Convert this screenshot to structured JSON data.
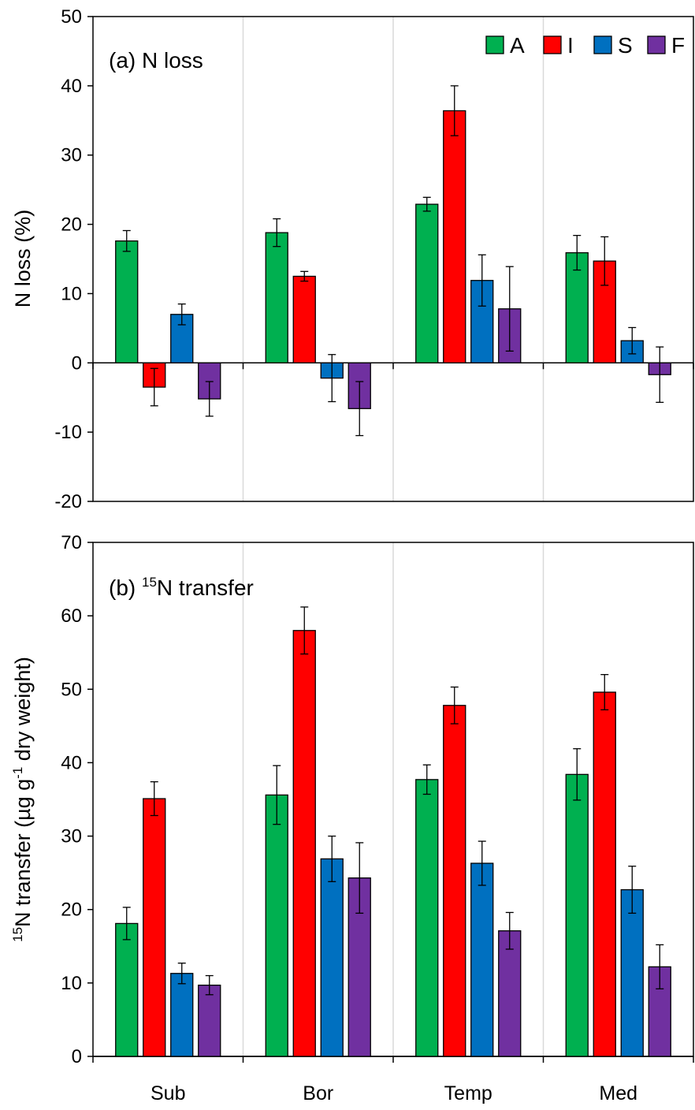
{
  "legend": [
    {
      "key": "A",
      "color": "#00b050"
    },
    {
      "key": "I",
      "color": "#ff0000"
    },
    {
      "key": "S",
      "color": "#0070c0"
    },
    {
      "key": "F",
      "color": "#7030a0"
    }
  ],
  "chart_data": [
    {
      "type": "bar",
      "title_prefix": "(a) N loss",
      "title_sup": "",
      "title_suffix": "",
      "ylabel_prefix": "N loss (%)",
      "ylabel_sup": "",
      "ylabel_mid": "",
      "ylabel_sup2": "",
      "ylabel_suffix": "",
      "ylim": [
        -20,
        50
      ],
      "yticks": [
        -20,
        -10,
        0,
        10,
        20,
        30,
        40,
        50
      ],
      "categories": [
        "Sub",
        "Bor",
        "Temp",
        "Med"
      ],
      "series": [
        {
          "name": "A",
          "values": [
            17.6,
            18.8,
            22.9,
            15.9
          ],
          "errors": [
            1.5,
            2.0,
            1.0,
            2.5
          ]
        },
        {
          "name": "I",
          "values": [
            -3.5,
            12.5,
            36.4,
            14.7
          ],
          "errors": [
            2.7,
            0.7,
            3.6,
            3.5
          ]
        },
        {
          "name": "S",
          "values": [
            7.0,
            -2.2,
            11.9,
            3.2
          ],
          "errors": [
            1.5,
            3.4,
            3.7,
            1.9
          ]
        },
        {
          "name": "F",
          "values": [
            -5.2,
            -6.6,
            7.8,
            -1.7
          ],
          "errors": [
            2.5,
            3.9,
            6.1,
            4.0
          ]
        }
      ],
      "grid": "vertical separators between categories",
      "legend_position": "top-right"
    },
    {
      "type": "bar",
      "title_prefix": "(b) ",
      "title_sup": "15",
      "title_suffix": "N transfer",
      "ylabel_prefix": "",
      "ylabel_sup": "15",
      "ylabel_mid": "N transfer (µg g",
      "ylabel_sup2": "-1",
      "ylabel_suffix": " dry weight)",
      "ylim": [
        0,
        70
      ],
      "yticks": [
        0,
        10,
        20,
        30,
        40,
        50,
        60,
        70
      ],
      "categories": [
        "Sub",
        "Bor",
        "Temp",
        "Med"
      ],
      "series": [
        {
          "name": "A",
          "values": [
            18.1,
            35.6,
            37.7,
            38.4
          ],
          "errors": [
            2.2,
            4.0,
            2.0,
            3.5
          ]
        },
        {
          "name": "I",
          "values": [
            35.1,
            58.0,
            47.8,
            49.6
          ],
          "errors": [
            2.3,
            3.2,
            2.5,
            2.4
          ]
        },
        {
          "name": "S",
          "values": [
            11.3,
            26.9,
            26.3,
            22.7
          ],
          "errors": [
            1.4,
            3.1,
            3.0,
            3.2
          ]
        },
        {
          "name": "F",
          "values": [
            9.7,
            24.3,
            17.1,
            12.2
          ],
          "errors": [
            1.3,
            4.8,
            2.5,
            3.0
          ]
        }
      ],
      "grid": "vertical separators between categories"
    }
  ]
}
